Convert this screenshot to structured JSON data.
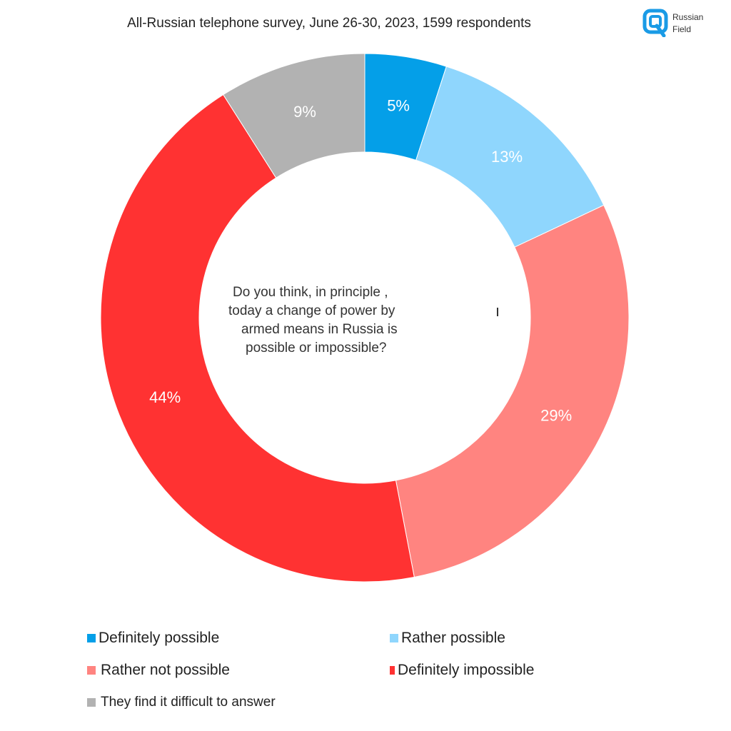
{
  "header": {
    "subtitle": "All-Russian telephone survey, June 26-30, 2023, 1599 respondents"
  },
  "logo": {
    "line1": "Russian",
    "line2": "Field",
    "color": "#1a9be6"
  },
  "question": {
    "line1": "Do you think, in principle ,",
    "line2": "today a change of power by",
    "line3": "armed means in Russia is",
    "line4": "possible or impossible?"
  },
  "chart_data": {
    "type": "pie",
    "donut": true,
    "title": "Do you think, in principle , today a change of power by armed means in Russia is possible or impossible?",
    "subtitle": "All-Russian telephone survey, June 26-30, 2023, 1599 respondents",
    "unit": "%",
    "legend_position": "bottom",
    "slices": [
      {
        "name": "Definitely possible",
        "value": 5,
        "label": "5%",
        "color": "#049fe8"
      },
      {
        "name": "Rather possible",
        "value": 13,
        "label": "13%",
        "color": "#8fd6fd"
      },
      {
        "name": "Rather not possible",
        "value": 29,
        "label": "29%",
        "color": "#ff8480"
      },
      {
        "name": "Definitely impossible",
        "value": 44,
        "label": "44%",
        "color": "#ff3232"
      },
      {
        "name": "They find it difficult to answer",
        "value": 9,
        "label": "9%",
        "color": "#b2b2b2"
      }
    ]
  }
}
